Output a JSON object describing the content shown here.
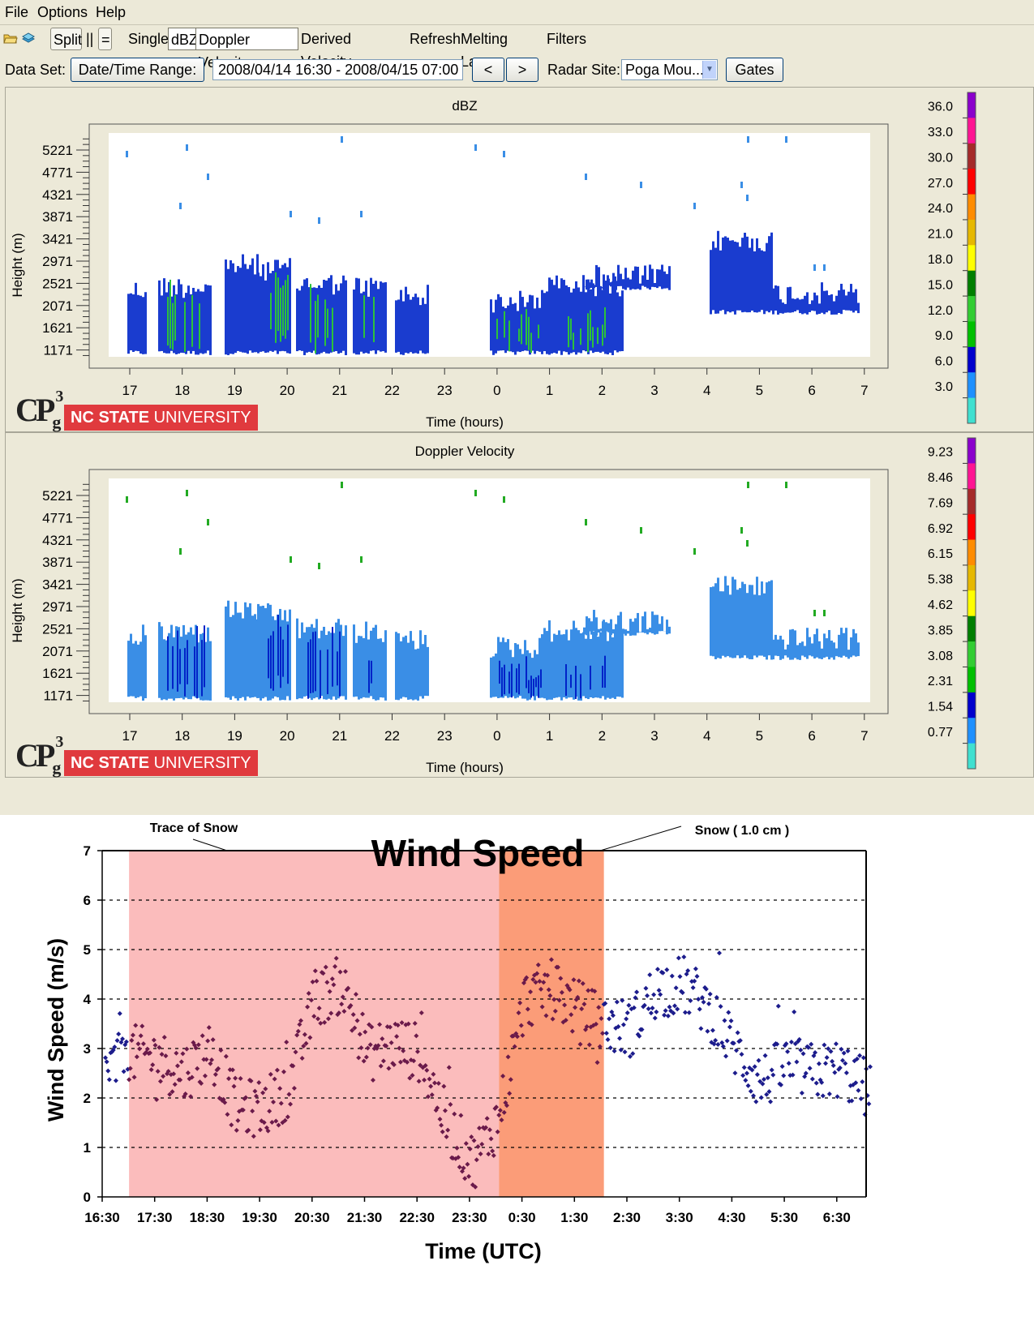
{
  "menubar": {
    "items": [
      "File",
      "Options",
      "Help"
    ]
  },
  "toolbar": {
    "split_label": "Split",
    "pipe_label": "||",
    "equal_label": "=",
    "single_label": "Single",
    "dbz_label": "dBZ",
    "doppler_label": "Doppler Velocity",
    "derived_label": "Derived Velocity",
    "refresh_label": "Refresh",
    "melting_label": "Melting Layer",
    "filters_label": "Filters"
  },
  "dataset": {
    "label": "Data Set:",
    "range_button": "Date/Time Range:",
    "range_value": "2008/04/14 16:30 - 2008/04/15 07:00",
    "prev_label": "<",
    "next_label": ">",
    "radar_label": "Radar Site:",
    "radar_value": "Poga Mou...",
    "gates_label": "Gates"
  },
  "branding": {
    "university": "NC STATE UNIVERSITY",
    "university_bold": "NC STATE",
    "university_rest": "UNIVERSITY"
  },
  "chart_data": [
    {
      "type": "heatmap",
      "title": "dBZ",
      "xlabel": "Time (hours)",
      "ylabel": "Height (m)",
      "x_ticks": [
        "17",
        "18",
        "19",
        "20",
        "21",
        "22",
        "23",
        "0",
        "1",
        "2",
        "3",
        "4",
        "5",
        "6",
        "7"
      ],
      "y_ticks": [
        "5221",
        "4771",
        "4321",
        "3871",
        "3421",
        "2971",
        "2521",
        "2071",
        "1621",
        "1171"
      ],
      "colorbar_ticks": [
        "36.0",
        "33.0",
        "30.0",
        "27.0",
        "24.0",
        "21.0",
        "18.0",
        "15.0",
        "12.0",
        "9.0",
        "6.0",
        "3.0"
      ],
      "colorbar_colors": [
        "#40e0d0",
        "#1e90ff",
        "#0000cd",
        "#00c000",
        "#32cd32",
        "#007f00",
        "#ffff00",
        "#e6b800",
        "#ff8c00",
        "#ff0000",
        "#a52a2a",
        "#ff1493",
        "#8b00cc"
      ]
    },
    {
      "type": "heatmap",
      "title": "Doppler Velocity",
      "xlabel": "Time (hours)",
      "ylabel": "Height (m)",
      "x_ticks": [
        "17",
        "18",
        "19",
        "20",
        "21",
        "22",
        "23",
        "0",
        "1",
        "2",
        "3",
        "4",
        "5",
        "6",
        "7"
      ],
      "y_ticks": [
        "5221",
        "4771",
        "4321",
        "3871",
        "3421",
        "2971",
        "2521",
        "2071",
        "1621",
        "1171"
      ],
      "colorbar_ticks": [
        "9.23",
        "8.46",
        "7.69",
        "6.92",
        "6.15",
        "5.38",
        "4.62",
        "3.85",
        "3.08",
        "2.31",
        "1.54",
        "0.77"
      ],
      "colorbar_colors": [
        "#40e0d0",
        "#1e90ff",
        "#0000cd",
        "#00c000",
        "#32cd32",
        "#007f00",
        "#ffff00",
        "#e6b800",
        "#ff8c00",
        "#ff0000",
        "#a52a2a",
        "#ff1493",
        "#8b00cc"
      ]
    },
    {
      "type": "scatter",
      "title": "Wind Speed",
      "xlabel": "Time (UTC)",
      "ylabel": "Wind Speed (m/s)",
      "x_ticks": [
        "16:30",
        "17:30",
        "18:30",
        "19:30",
        "20:30",
        "21:30",
        "22:30",
        "23:30",
        "0:30",
        "1:30",
        "2:30",
        "3:30",
        "4:30",
        "5:30",
        "6:30"
      ],
      "y_ticks": [
        "0",
        "1",
        "2",
        "3",
        "4",
        "5",
        "6",
        "7"
      ],
      "ylim": [
        0,
        7
      ],
      "grid": "horizontal dashed",
      "annotations": [
        {
          "text": "Trace of Snow",
          "start_hour": 0.45,
          "end_hour": 7.5,
          "color": "#fbbcbc"
        },
        {
          "text": "Snow ( 1.0 cm )",
          "start_hour": 7.5,
          "end_hour": 9.5,
          "color": "#fb9c78"
        }
      ],
      "series_trend": {
        "hours": [
          0,
          0.5,
          1.0,
          1.5,
          2.0,
          2.5,
          3.0,
          3.5,
          4.0,
          4.5,
          5.0,
          5.5,
          6.0,
          6.5,
          7.0,
          7.5,
          8.0,
          8.5,
          9.0,
          9.5,
          10.0,
          10.5,
          11.0,
          11.5,
          12.0,
          12.5,
          13.0,
          13.5,
          14.0,
          14.5
        ],
        "speeds": [
          2.5,
          2.9,
          2.8,
          2.5,
          3.0,
          1.8,
          1.8,
          2.2,
          4.0,
          4.3,
          2.9,
          3.1,
          2.9,
          1.5,
          0.7,
          1.6,
          4.0,
          4.2,
          3.8,
          3.5,
          3.4,
          4.2,
          4.3,
          3.8,
          3.0,
          2.3,
          2.7,
          2.5,
          2.6,
          2.2
        ]
      },
      "series_color": "#1c1c8c",
      "series_color_snow": "#6a1a4a"
    }
  ]
}
